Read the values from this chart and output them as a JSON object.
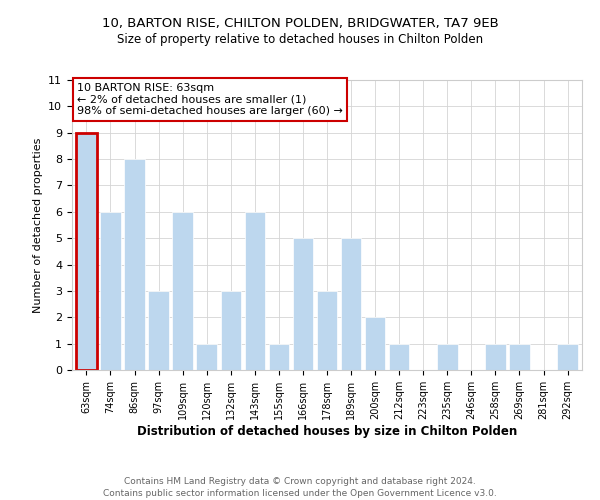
{
  "title1": "10, BARTON RISE, CHILTON POLDEN, BRIDGWATER, TA7 9EB",
  "title2": "Size of property relative to detached houses in Chilton Polden",
  "xlabel": "Distribution of detached houses by size in Chilton Polden",
  "ylabel": "Number of detached properties",
  "categories": [
    "63sqm",
    "74sqm",
    "86sqm",
    "97sqm",
    "109sqm",
    "120sqm",
    "132sqm",
    "143sqm",
    "155sqm",
    "166sqm",
    "178sqm",
    "189sqm",
    "200sqm",
    "212sqm",
    "223sqm",
    "235sqm",
    "246sqm",
    "258sqm",
    "269sqm",
    "281sqm",
    "292sqm"
  ],
  "values": [
    9,
    6,
    8,
    3,
    6,
    1,
    3,
    6,
    1,
    5,
    3,
    5,
    2,
    1,
    0,
    1,
    0,
    1,
    1,
    0,
    1
  ],
  "bar_color": "#bdd7ee",
  "highlight_index": 0,
  "highlight_color": "#cc0000",
  "ylim": [
    0,
    11
  ],
  "yticks": [
    0,
    1,
    2,
    3,
    4,
    5,
    6,
    7,
    8,
    9,
    10,
    11
  ],
  "annotation_line1": "10 BARTON RISE: 63sqm",
  "annotation_line2": "← 2% of detached houses are smaller (1)",
  "annotation_line3": "98% of semi-detached houses are larger (60) →",
  "footer1": "Contains HM Land Registry data © Crown copyright and database right 2024.",
  "footer2": "Contains public sector information licensed under the Open Government Licence v3.0.",
  "background_color": "#ffffff",
  "grid_color": "#d4d4d4"
}
